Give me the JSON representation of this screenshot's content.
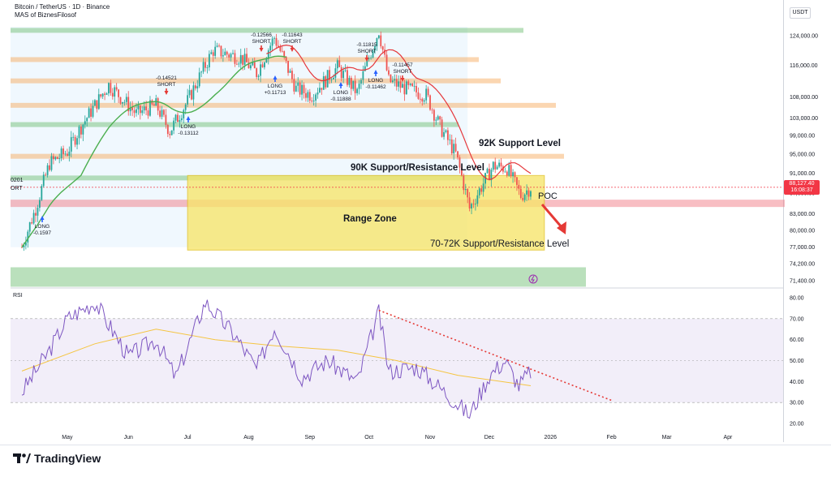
{
  "header": {
    "title": "Bitcoin / TetherUS · 1D · Binance",
    "subtitle": "MAS of BiznesFilosof",
    "currency": "USDT"
  },
  "price_tag": {
    "price": "88,127.40",
    "countdown": "16:08:37"
  },
  "annotations": {
    "support_92k": "92K Support Level",
    "support_90k": "90K Support/Resistance Level",
    "range_zone": "Range Zone",
    "support_70k": "70-72K Support/Resistance Level",
    "poc": "POC",
    "left_cut_top": "0201",
    "left_cut_bottom": "ORT"
  },
  "signals": [
    {
      "side": "LONG",
      "value": "-0.1597"
    },
    {
      "side": "SHORT",
      "value": "-0.14521"
    },
    {
      "side": "LONG",
      "value": "-0.13112"
    },
    {
      "side": "SHORT",
      "value": "-0.12566"
    },
    {
      "side": "SHORT",
      "value": "-0.11643"
    },
    {
      "side": "LONG",
      "value": "+0.11713"
    },
    {
      "side": "LONG",
      "value": "-0.11888"
    },
    {
      "side": "SHORT",
      "value": "-0.11815"
    },
    {
      "side": "SHORT",
      "value": "-0.11457"
    },
    {
      "side": "LONG",
      "value": "-0.11462"
    }
  ],
  "colors": {
    "up": "#26a69a",
    "down": "#ef5350",
    "ma": "#4caf50",
    "trend": "#e5373b",
    "rsi": "#7e57c2",
    "rsi_ma": "#f5c542",
    "range_zone": "#f7e56a",
    "support_band_green": "#66bb6a",
    "support_band_orange": "#f7a553",
    "support_band_red": "#ef6f7a",
    "downtrend_dots": "#e53935"
  },
  "chart_data": [
    {
      "type": "candlestick",
      "title": "Bitcoin / TetherUS · 1D · Binance",
      "x_tick_labels": [
        "May",
        "Jun",
        "Jul",
        "Aug",
        "Sep",
        "Oct",
        "Nov",
        "Dec",
        "2026",
        "Feb",
        "Mar",
        "Apr"
      ],
      "y_tick_labels": [
        "124,000.00",
        "116,000.00",
        "108,000.00",
        "103,000.00",
        "99,000.00",
        "95,000.00",
        "91,000.00",
        "87,000.00",
        "83,000.00",
        "80,000.00",
        "77,000.00",
        "74,200.00",
        "71,400.00"
      ],
      "ylim": [
        70000,
        127000
      ],
      "scale": "log",
      "grid": false,
      "price_path_points": [
        {
          "x": "2025-04-08",
          "y": 77000
        },
        {
          "x": "2025-04-15",
          "y": 84000
        },
        {
          "x": "2025-04-22",
          "y": 93000
        },
        {
          "x": "2025-05-01",
          "y": 95500
        },
        {
          "x": "2025-05-08",
          "y": 101000
        },
        {
          "x": "2025-05-22",
          "y": 111000
        },
        {
          "x": "2025-06-05",
          "y": 104000
        },
        {
          "x": "2025-06-15",
          "y": 106000
        },
        {
          "x": "2025-06-22",
          "y": 100000
        },
        {
          "x": "2025-07-01",
          "y": 107000
        },
        {
          "x": "2025-07-14",
          "y": 120000
        },
        {
          "x": "2025-07-28",
          "y": 118000
        },
        {
          "x": "2025-08-05",
          "y": 114000
        },
        {
          "x": "2025-08-14",
          "y": 123500
        },
        {
          "x": "2025-08-25",
          "y": 110000
        },
        {
          "x": "2025-09-02",
          "y": 108500
        },
        {
          "x": "2025-09-15",
          "y": 115500
        },
        {
          "x": "2025-09-25",
          "y": 109000
        },
        {
          "x": "2025-10-06",
          "y": 125500
        },
        {
          "x": "2025-10-11",
          "y": 112000
        },
        {
          "x": "2025-10-20",
          "y": 110000
        },
        {
          "x": "2025-10-30",
          "y": 108500
        },
        {
          "x": "2025-11-06",
          "y": 101000
        },
        {
          "x": "2025-11-14",
          "y": 95000
        },
        {
          "x": "2025-11-21",
          "y": 84000
        },
        {
          "x": "2025-12-03",
          "y": 92500
        },
        {
          "x": "2025-12-10",
          "y": 92000
        },
        {
          "x": "2025-12-17",
          "y": 86500
        },
        {
          "x": "2025-12-22",
          "y": 88127
        }
      ],
      "horizontal_levels": [
        {
          "price": 125500,
          "color": "green"
        },
        {
          "price": 117500,
          "color": "orange"
        },
        {
          "price": 112000,
          "color": "orange"
        },
        {
          "price": 106000,
          "color": "orange"
        },
        {
          "price": 101500,
          "color": "green"
        },
        {
          "price": 94500,
          "color": "orange"
        },
        {
          "price": 90000,
          "color": "green"
        },
        {
          "price": 85000,
          "color": "red"
        },
        {
          "price": 72000,
          "color": "green"
        }
      ],
      "range_zone": {
        "from": "2025-07-01",
        "to": "2025-12-31",
        "low": 76500,
        "high": 90500
      },
      "last_price": 88127.4
    },
    {
      "type": "line",
      "title": "RSI",
      "y_tick_labels": [
        "80.00",
        "70.00",
        "60.00",
        "50.00",
        "40.00",
        "30.00",
        "20.00"
      ],
      "ylim": [
        18,
        84
      ],
      "bands": [
        30,
        70
      ],
      "midline": 50,
      "rsi_points": [
        {
          "x": "2025-04-08",
          "y": 35
        },
        {
          "x": "2025-04-22",
          "y": 55
        },
        {
          "x": "2025-05-01",
          "y": 70
        },
        {
          "x": "2025-05-15",
          "y": 78
        },
        {
          "x": "2025-06-01",
          "y": 52
        },
        {
          "x": "2025-06-15",
          "y": 60
        },
        {
          "x": "2025-06-25",
          "y": 42
        },
        {
          "x": "2025-07-10",
          "y": 78
        },
        {
          "x": "2025-07-25",
          "y": 62
        },
        {
          "x": "2025-08-05",
          "y": 46
        },
        {
          "x": "2025-08-14",
          "y": 66
        },
        {
          "x": "2025-08-28",
          "y": 42
        },
        {
          "x": "2025-09-10",
          "y": 50
        },
        {
          "x": "2025-09-25",
          "y": 40
        },
        {
          "x": "2025-10-06",
          "y": 73
        },
        {
          "x": "2025-10-11",
          "y": 45
        },
        {
          "x": "2025-10-25",
          "y": 47
        },
        {
          "x": "2025-11-05",
          "y": 38
        },
        {
          "x": "2025-11-21",
          "y": 24
        },
        {
          "x": "2025-12-01",
          "y": 43
        },
        {
          "x": "2025-12-09",
          "y": 50
        },
        {
          "x": "2025-12-16",
          "y": 38
        },
        {
          "x": "2025-12-22",
          "y": 45
        }
      ],
      "rsi_ma_points": [
        {
          "x": "2025-04-08",
          "y": 45
        },
        {
          "x": "2025-05-15",
          "y": 58
        },
        {
          "x": "2025-06-15",
          "y": 65
        },
        {
          "x": "2025-07-15",
          "y": 60
        },
        {
          "x": "2025-08-15",
          "y": 57
        },
        {
          "x": "2025-09-15",
          "y": 55
        },
        {
          "x": "2025-10-15",
          "y": 50
        },
        {
          "x": "2025-11-15",
          "y": 43
        },
        {
          "x": "2025-12-22",
          "y": 38
        }
      ],
      "downtrend": {
        "from": {
          "x": "2025-10-06",
          "y": 74
        },
        "to": {
          "x": "2026-02-01",
          "y": 31
        }
      }
    }
  ],
  "footer": {
    "brand": "TradingView"
  }
}
